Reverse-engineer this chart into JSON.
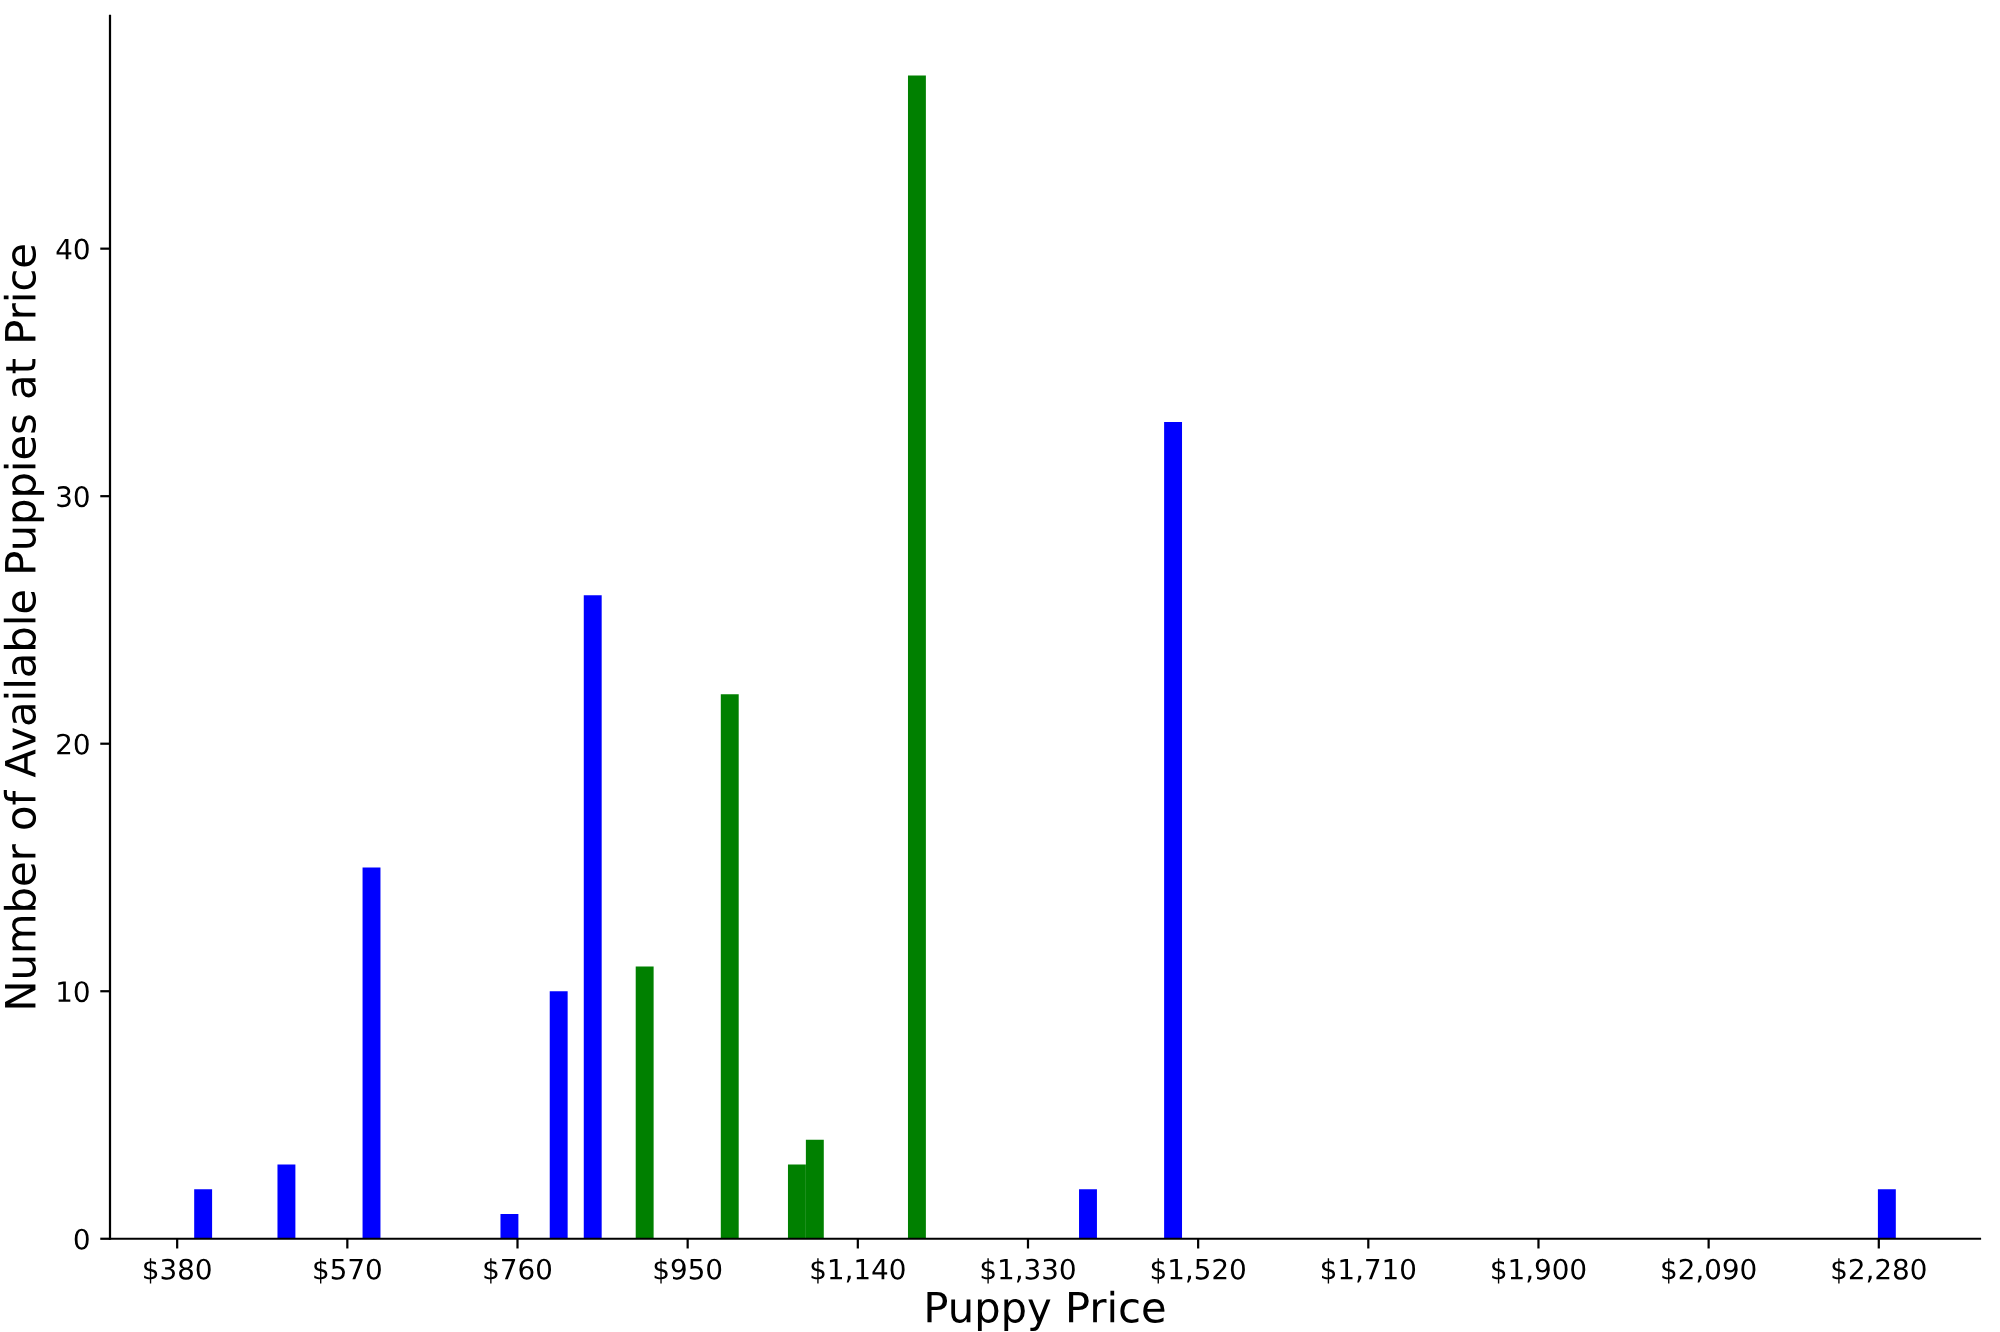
{
  "chart_data": {
    "type": "bar",
    "xlabel": "Puppy Price",
    "ylabel": "Number of Available Puppies at Price",
    "x": [
      409,
      502,
      597,
      751,
      806,
      844,
      902,
      997,
      1072,
      1092,
      1206,
      1397,
      1492,
      2289
    ],
    "values": [
      2,
      3,
      15,
      1,
      10,
      26,
      11,
      22,
      3,
      4,
      47,
      2,
      33,
      2
    ],
    "colors": [
      "#0000ff",
      "#0000ff",
      "#0000ff",
      "#0000ff",
      "#0000ff",
      "#0000ff",
      "#008000",
      "#008000",
      "#008000",
      "#008000",
      "#008000",
      "#0000ff",
      "#0000ff",
      "#0000ff"
    ],
    "xlim": [
      305,
      2393
    ],
    "ylim": [
      0,
      49.4
    ],
    "xticks": [
      {
        "value": 380,
        "label": "$380"
      },
      {
        "value": 570,
        "label": "$570"
      },
      {
        "value": 760,
        "label": "$760"
      },
      {
        "value": 950,
        "label": "$950"
      },
      {
        "value": 1140,
        "label": "$1,140"
      },
      {
        "value": 1330,
        "label": "$1,330"
      },
      {
        "value": 1520,
        "label": "$1,520"
      },
      {
        "value": 1710,
        "label": "$1,710"
      },
      {
        "value": 1900,
        "label": "$1,900"
      },
      {
        "value": 2090,
        "label": "$2,090"
      },
      {
        "value": 2280,
        "label": "$2,280"
      }
    ],
    "yticks": [
      0,
      10,
      20,
      30,
      40
    ],
    "grid": false,
    "legend": false
  }
}
